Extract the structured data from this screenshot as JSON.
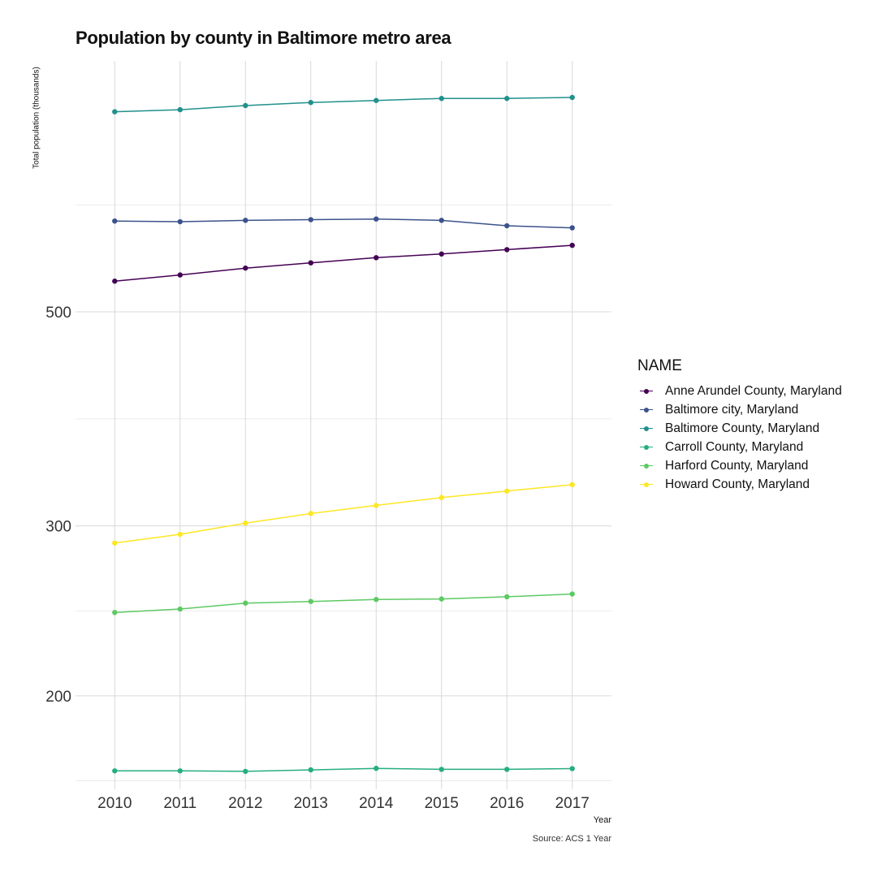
{
  "chart_data": {
    "type": "line",
    "title": "Population by county in Baltimore metro area",
    "xlabel": "Year",
    "ylabel": "Total population (thousands)",
    "caption": "Source: ACS 1 Year",
    "y_scale": "log",
    "ylim": [
      160,
      910
    ],
    "y_ticks": [
      200,
      300,
      500
    ],
    "grid": true,
    "legend_position": "right",
    "legend_title": "NAME",
    "x": [
      2010,
      2011,
      2012,
      2013,
      2014,
      2015,
      2016,
      2017
    ],
    "series": [
      {
        "name": "Anne Arundel County, Maryland",
        "color": "#440154",
        "values": [
          538,
          546,
          555,
          562,
          569,
          574,
          580,
          586
        ]
      },
      {
        "name": "Baltimore city, Maryland",
        "color": "#3B528B",
        "values": [
          621,
          620,
          622,
          623,
          624,
          622,
          614,
          611
        ]
      },
      {
        "name": "Baltimore County, Maryland",
        "color": "#21908C",
        "values": [
          806,
          810,
          818,
          824,
          828,
          832,
          832,
          834
        ]
      },
      {
        "name": "Carroll County, Maryland",
        "color": "#27AD81",
        "values": [
          167.2,
          167.2,
          167.0,
          167.6,
          168.2,
          167.8,
          167.8,
          168.1
        ]
      },
      {
        "name": "Harford County, Maryland",
        "color": "#5DC963",
        "values": [
          244,
          246,
          249.5,
          250.5,
          251.7,
          252,
          253.3,
          255
        ]
      },
      {
        "name": "Howard County, Maryland",
        "color": "#FDE725",
        "values": [
          288,
          294,
          302,
          309,
          315,
          321,
          326,
          331
        ]
      }
    ]
  }
}
